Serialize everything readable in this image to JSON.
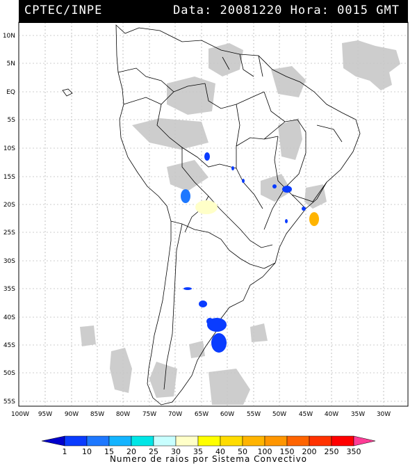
{
  "header": {
    "source": "CPTEC/INPE",
    "date_label": "Data:",
    "date": "20081220",
    "time_label": "Hora:",
    "time": "0015",
    "tz": "GMT"
  },
  "lat_labels": [
    "10N",
    "5N",
    "EQ",
    "5S",
    "10S",
    "15S",
    "20S",
    "25S",
    "30S",
    "35S",
    "40S",
    "45S",
    "50S",
    "55S"
  ],
  "lon_labels": [
    "100W",
    "95W",
    "90W",
    "85W",
    "80W",
    "75W",
    "70W",
    "65W",
    "60W",
    "55W",
    "50W",
    "45W",
    "40W",
    "35W",
    "30W"
  ],
  "colorbar": {
    "labels": [
      "1",
      "10",
      "15",
      "20",
      "25",
      "30",
      "35",
      "40",
      "50",
      "100",
      "150",
      "200",
      "250",
      "350"
    ],
    "colors": [
      "#0000cc",
      "#0a3cff",
      "#1e78ff",
      "#14b4ff",
      "#00e6e6",
      "#c8ffff",
      "#ffffc8",
      "#ffff00",
      "#ffdc00",
      "#ffb400",
      "#ff9600",
      "#ff6400",
      "#ff3200",
      "#ff0000",
      "#ff3c96"
    ],
    "caption": "Numero de raios por Sistema Convectivo"
  }
}
